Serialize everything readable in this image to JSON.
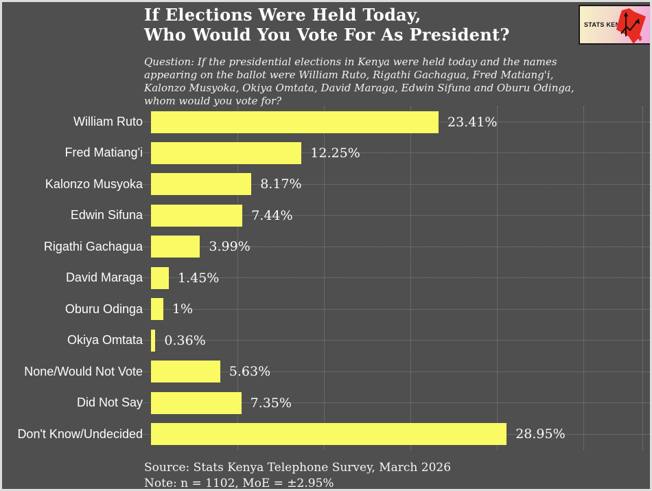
{
  "header": {
    "title_line1": "If Elections Were Held Today,",
    "title_line2": "Who Would You Vote For As President?",
    "question": "Question: If the presidential elections in Kenya were held today and the names appearing on the ballot were William Ruto, Rigathi Gachagua, Fred Matiang'i, Kalonzo Musyoka, Okiya Omtata, David Maraga, Edwin Sifuna and Oburu Odinga, whom would you vote for?"
  },
  "logo": {
    "text": "STATS KENYA",
    "icon": "kenya-map-icon",
    "background_left": "#F7F2C6",
    "background_right": "#F0A6DE",
    "map_color": "#E62B20"
  },
  "chart_data": {
    "type": "bar",
    "orientation": "horizontal",
    "title": "If Elections Were Held Today, Who Would You Vote For As President?",
    "categories": [
      "William Ruto",
      "Fred Matiang'i",
      "Kalonzo Musyoka",
      "Edwin Sifuna",
      "Rigathi Gachagua",
      "David Maraga",
      "Oburu Odinga",
      "Okiya Omtata",
      "None/Would Not Vote",
      "Did Not Say",
      "Don't Know/Undecided"
    ],
    "values": [
      23.41,
      12.25,
      8.17,
      7.44,
      3.99,
      1.45,
      1,
      0.36,
      5.63,
      7.35,
      28.95
    ],
    "value_labels": [
      "23.41%",
      "12.25%",
      "8.17%",
      "7.44%",
      "3.99%",
      "1.45%",
      "1%",
      "0.36%",
      "5.63%",
      "7.35%",
      "28.95%"
    ],
    "xlabel": "",
    "ylabel": "",
    "xlim": [
      0,
      30
    ],
    "grid": true,
    "legend": false,
    "bar_color": "#FAFA64",
    "background_color": "#4F4F4F",
    "text_color": "#FDFDFD"
  },
  "footer": {
    "source": "Source: Stats Kenya Telephone Survey, March 2026",
    "note": "Note: n = 1102, MoE = ±2.95%"
  }
}
